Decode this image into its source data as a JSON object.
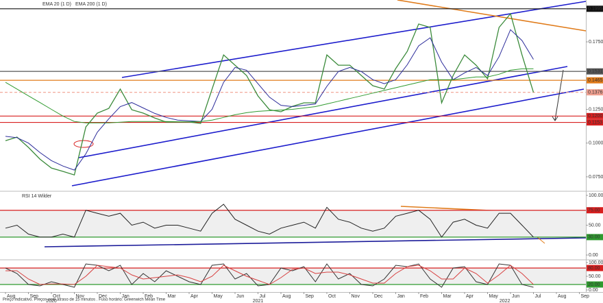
{
  "chart_data": [
    {
      "type": "line",
      "ylim": [
        0.0648,
        0.206
      ],
      "yticks": [
        {
          "value": 0.175,
          "label": "0.1750"
        },
        {
          "value": 0.125,
          "label": "0.1250"
        },
        {
          "value": 0.1,
          "label": "0.1000"
        },
        {
          "value": 0.075,
          "label": "0.0750"
        }
      ],
      "levels": [
        {
          "value": 0.1995,
          "label": "0.1995",
          "color": "#111111"
        },
        {
          "value": 0.1531,
          "label": "0.1531",
          "color": "#555555"
        },
        {
          "value": 0.1465,
          "label": "0.1465",
          "color": "#e07b1a"
        },
        {
          "value": 0.1376,
          "label": "0.1376",
          "color": "#f0a090",
          "dash": true
        },
        {
          "value": 0.12,
          "label": "0.1200",
          "color": "#d81e1e"
        },
        {
          "value": 0.1153,
          "label": "0.1153",
          "color": "#d81e1e"
        }
      ],
      "series": [
        {
          "color": "#3a8a3a",
          "values": [
            0.1018,
            0.1044,
            0.0968,
            0.0881,
            0.0815,
            0.079,
            0.0764,
            0.112,
            0.1222,
            0.1257,
            0.14,
            0.1247,
            0.1222,
            0.1186,
            0.1156,
            0.1156,
            0.1156,
            0.1145,
            0.14,
            0.1653,
            0.1577,
            0.1501,
            0.1349,
            0.1247,
            0.1232,
            0.1272,
            0.1298,
            0.1298,
            0.1653,
            0.1577,
            0.1577,
            0.1501,
            0.1425,
            0.14,
            0.1552,
            0.1679,
            0.1882,
            0.1857,
            0.1298,
            0.1501,
            0.1653,
            0.1577,
            0.1476,
            0.1857,
            0.1958,
            0.1653,
            0.1376,
            null,
            null,
            null,
            null
          ]
        },
        {
          "name": "EMA 20 (1 D)",
          "color": "#2b2b9a",
          "values": [
            0.105,
            0.104,
            0.1,
            0.093,
            0.087,
            0.083,
            0.08,
            0.092,
            0.108,
            0.118,
            0.127,
            0.13,
            0.126,
            0.122,
            0.119,
            0.117,
            0.1165,
            0.116,
            0.125,
            0.145,
            0.156,
            0.154,
            0.144,
            0.134,
            0.128,
            0.127,
            0.128,
            0.129,
            0.142,
            0.153,
            0.156,
            0.153,
            0.147,
            0.144,
            0.147,
            0.158,
            0.172,
            0.178,
            0.16,
            0.147,
            0.152,
            0.156,
            0.15,
            0.164,
            0.184,
            0.176,
            0.162,
            null,
            null,
            null,
            null
          ]
        },
        {
          "name": "EMA 200 (1 D)",
          "color": "#2f9a2f",
          "values": [
            0.145,
            0.14,
            0.135,
            0.13,
            0.125,
            0.12,
            0.116,
            0.115,
            0.115,
            0.115,
            0.1155,
            0.116,
            0.116,
            0.116,
            0.116,
            0.1158,
            0.1157,
            0.116,
            0.117,
            0.119,
            0.121,
            0.1225,
            0.1235,
            0.124,
            0.1245,
            0.125,
            0.126,
            0.127,
            0.129,
            0.131,
            0.133,
            0.135,
            0.137,
            0.139,
            0.141,
            0.143,
            0.145,
            0.147,
            0.147,
            0.147,
            0.148,
            0.149,
            0.149,
            0.151,
            0.154,
            0.155,
            0.155,
            null,
            null,
            null,
            null
          ]
        }
      ]
    },
    {
      "type": "line",
      "ylim": [
        -6.9,
        105.7
      ],
      "yticks": [
        {
          "value": 100,
          "label": "100.00"
        },
        {
          "value": 50,
          "label": "50.00"
        },
        {
          "value": 0,
          "label": "0.00"
        }
      ],
      "levels": [
        {
          "value": 75,
          "label": "75.00",
          "color": "#d81e1e"
        },
        {
          "value": 30,
          "label": "30.00",
          "color": "#2f9a2f"
        }
      ],
      "series": [
        {
          "name": "RSI 14 Wilder",
          "color": "#222222",
          "values": [
            45,
            50,
            35,
            30,
            30,
            35,
            30,
            75,
            70,
            65,
            70,
            50,
            55,
            45,
            50,
            50,
            45,
            40,
            70,
            85,
            60,
            50,
            40,
            35,
            45,
            50,
            55,
            45,
            80,
            60,
            55,
            45,
            40,
            45,
            65,
            70,
            75,
            60,
            30,
            55,
            60,
            50,
            45,
            70,
            70,
            50,
            30,
            null,
            null,
            null,
            null
          ]
        }
      ]
    },
    {
      "type": "line",
      "ylim": [
        -7.5,
        107.5
      ],
      "yticks": [
        {
          "value": 100,
          "label": "100.00"
        },
        {
          "value": 50,
          "label": "50.00"
        },
        {
          "value": 0,
          "label": "0.00"
        }
      ],
      "levels": [
        {
          "value": 80,
          "label": "80.00",
          "color": "#d81e1e"
        },
        {
          "value": 20,
          "label": "20.00",
          "color": "#2f9a2f"
        }
      ],
      "categories": [
        "Aug",
        null,
        "Sep",
        null,
        "Oct",
        null,
        "Nov",
        null,
        "Dec",
        null,
        "Jan",
        null,
        "Feb",
        null,
        "Mar",
        null,
        "Apr",
        null,
        "May",
        null,
        "Jun",
        null,
        "Jul",
        null,
        "Aug",
        null,
        "Sep",
        null,
        "Oct",
        null,
        "Nov",
        null,
        "Dec",
        null,
        "Jan",
        null,
        "Feb",
        null,
        "Mar",
        null,
        "Apr",
        null,
        "May",
        null,
        "Jun",
        null,
        "Jul",
        null,
        "Aug",
        null,
        "Sep"
      ],
      "year_labels": [
        "2020",
        "2021",
        "2022"
      ],
      "series": [
        {
          "color": "#333333",
          "values": [
            80,
            60,
            20,
            15,
            30,
            20,
            10,
            95,
            90,
            70,
            90,
            20,
            60,
            30,
            70,
            50,
            30,
            20,
            90,
            95,
            40,
            60,
            15,
            20,
            80,
            70,
            85,
            30,
            95,
            40,
            60,
            20,
            15,
            40,
            90,
            85,
            95,
            40,
            10,
            80,
            85,
            30,
            20,
            95,
            90,
            20,
            10,
            null,
            null,
            null,
            null
          ]
        },
        {
          "color": "#d84040",
          "values": [
            70,
            70,
            40,
            20,
            22,
            22,
            20,
            50,
            90,
            85,
            80,
            55,
            40,
            45,
            50,
            55,
            45,
            30,
            50,
            90,
            70,
            50,
            35,
            20,
            45,
            75,
            80,
            60,
            65,
            65,
            55,
            40,
            25,
            25,
            60,
            85,
            90,
            70,
            40,
            40,
            80,
            60,
            25,
            55,
            90,
            60,
            20,
            null,
            null,
            null,
            null
          ]
        }
      ]
    }
  ],
  "footer": "Preço indicativo. Preços com atraso de 15 minutos . Fuso horário: Greenwich Mean Time"
}
